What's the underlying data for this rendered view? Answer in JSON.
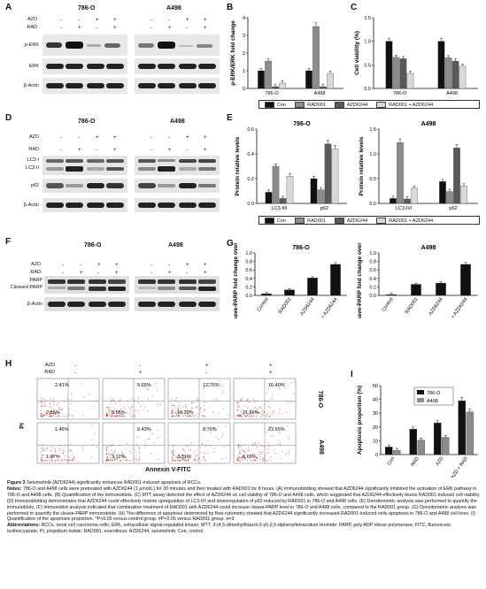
{
  "panels": {
    "A": "A",
    "B": "B",
    "C": "C",
    "D": "D",
    "E": "E",
    "F": "F",
    "G": "G",
    "H": "H",
    "I": "I"
  },
  "blots": {
    "A": {
      "cells": [
        "786-O",
        "A498"
      ],
      "treatments": [
        "AZD",
        "RAD"
      ],
      "signs": [
        "-",
        "-",
        "+",
        "+"
      ],
      "signs_rad": [
        "-",
        "+",
        "-",
        "+"
      ],
      "rows": [
        "p-ERK",
        "ERK",
        "β-Actin"
      ]
    },
    "D": {
      "cells": [
        "786-O",
        "A498"
      ],
      "treatments": [
        "AZD",
        "RAD"
      ],
      "rows": [
        "LC3-I",
        "LC3-II",
        "p62",
        "β-Actin"
      ]
    },
    "F": {
      "cells": [
        "786-O",
        "A498"
      ],
      "treatments": [
        "AZD",
        "RAD"
      ],
      "rows": [
        "PARP",
        "Cleaved PARP",
        "β-Actin"
      ]
    }
  },
  "flow": {
    "treatments": [
      "AZD",
      "RAD"
    ],
    "row_labels": [
      "786-O",
      "A498"
    ],
    "xlabel": "Annexin V-FITC",
    "ylabel": "PI",
    "gate_labels": "P6/P4/P5/P7",
    "upper_right": [
      "9.65%",
      "12.76%",
      "16.40%",
      "9.43%",
      "8.76%",
      "23.65%"
    ],
    "upper_left": [
      "2.41%",
      "1.46%"
    ],
    "lower_right": [
      "2.55%",
      "8.55%",
      "10.39%",
      "21.56%",
      "1.07%",
      "3.12%",
      "3.31%",
      "6.69%"
    ],
    "lr_extra": [
      "6.40%"
    ]
  },
  "chart_data": [
    {
      "type": "bar",
      "panel": "B",
      "ylabel": "p-ERK/ERK fold change",
      "categories": [
        "786-O",
        "A498"
      ],
      "ylim": [
        0,
        4
      ],
      "series": [
        {
          "name": "Con",
          "values": [
            1.0,
            1.0
          ]
        },
        {
          "name": "RAD001",
          "values": [
            1.55,
            3.5
          ]
        },
        {
          "name": "AZD6244",
          "values": [
            0.1,
            0.1
          ]
        },
        {
          "name": "RAD001 + AZD6244",
          "values": [
            0.3,
            0.85
          ]
        }
      ],
      "ticks": [
        "0",
        "1",
        "2",
        "3",
        "4"
      ]
    },
    {
      "type": "bar",
      "panel": "C",
      "ylabel": "Cell viability (%)",
      "categories": [
        "786-O",
        "A498"
      ],
      "ylim": [
        0,
        1.5
      ],
      "series": [
        {
          "name": "Con",
          "values": [
            1.0,
            1.0
          ]
        },
        {
          "name": "RAD001",
          "values": [
            0.66,
            0.65
          ]
        },
        {
          "name": "AZD6244",
          "values": [
            0.63,
            0.58
          ]
        },
        {
          "name": "RAD001 + AZD6244",
          "values": [
            0.32,
            0.47
          ]
        }
      ],
      "ticks": [
        "0.0",
        "0.5",
        "1.0",
        "1.5"
      ]
    },
    {
      "type": "bar",
      "panel": "E",
      "title": "786-O",
      "ylabel": "Protein relative levels",
      "categories": [
        "LC3-II/I",
        "p62"
      ],
      "ylim": [
        0,
        0.6
      ],
      "series": [
        {
          "name": "Con",
          "values": [
            0.09,
            0.2
          ]
        },
        {
          "name": "RAD001",
          "values": [
            0.3,
            0.11
          ]
        },
        {
          "name": "AZD6244",
          "values": [
            0.04,
            0.48
          ]
        },
        {
          "name": "RAD001 + AZD6244",
          "values": [
            0.22,
            0.44
          ]
        }
      ],
      "ticks": [
        "0.0",
        "0.2",
        "0.4",
        "0.6"
      ]
    },
    {
      "type": "bar",
      "panel": "E",
      "title": "A498",
      "ylabel": "Protein relative levels",
      "categories": [
        "LC3-II/I",
        "p62"
      ],
      "ylim": [
        0,
        1.5
      ],
      "series": [
        {
          "name": "Con",
          "values": [
            0.1,
            0.44
          ]
        },
        {
          "name": "RAD001",
          "values": [
            1.23,
            0.24
          ]
        },
        {
          "name": "AZD6244",
          "values": [
            0.09,
            1.12
          ]
        },
        {
          "name": "RAD001 + AZD6244",
          "values": [
            0.31,
            0.35
          ]
        }
      ],
      "ticks": [
        "0.0",
        "0.5",
        "1.0",
        "1.5"
      ]
    },
    {
      "type": "bar",
      "panel": "G",
      "title": "786-O",
      "ylabel": "Cleave-PARP fold change over β-actin",
      "categories": [
        "Control",
        "RAD001",
        "AZD6244",
        "RAD001 + AZD6244"
      ],
      "ylim": [
        0,
        1.0
      ],
      "values": [
        0.04,
        0.13,
        0.41,
        0.73
      ],
      "ticks": [
        "0.0",
        "0.2",
        "0.4",
        "0.6",
        "0.8",
        "1.0"
      ]
    },
    {
      "type": "bar",
      "panel": "G",
      "title": "A498",
      "ylabel": "Cleave-PARP fold change over β-actin",
      "categories": [
        "Control",
        "RAD001",
        "AZD6244",
        "RAD001 + AZD6244"
      ],
      "ylim": [
        0,
        1.0
      ],
      "values": [
        0.02,
        0.26,
        0.29,
        0.73
      ],
      "ticks": [
        "0.0",
        "0.2",
        "0.4",
        "0.6",
        "0.8",
        "1.0"
      ]
    },
    {
      "type": "bar",
      "panel": "I",
      "ylabel": "Apoptosis proportion (%)",
      "categories": [
        "Con",
        "RAD",
        "AZD",
        "AZD + RAD"
      ],
      "ylim": [
        0,
        50
      ],
      "series": [
        {
          "name": "786-O",
          "values": [
            5.5,
            18.5,
            23,
            39
          ]
        },
        {
          "name": "A498",
          "values": [
            3,
            10.5,
            12.5,
            31
          ]
        }
      ],
      "ticks": [
        "0",
        "10",
        "20",
        "30",
        "40",
        "50"
      ]
    }
  ],
  "legend_labels": [
    "Con",
    "RAD001",
    "AZD6244",
    "RAD001 + AZD6244"
  ],
  "colors": {
    "con": "#111111",
    "rad": "#8c8c8c",
    "azd": "#595959",
    "combo": "#d9d9d9",
    "i_786": "#111111",
    "i_a498": "#8c8c8c"
  },
  "caption": {
    "title_label": "Figure 3",
    "title": " Selumetinib (AZD6244) significantly enhances RAD001-induced apoptosis of RCCs.",
    "notes_label": "Notes:",
    "notes": " 786-O and A498 cells were pretreated with AZD6244 (1 μmol/L) for 30 minutes and then treated with RAD001 for 8 hours. (A) Immunoblotting showed that AZD6244 significantly inhibited the activation of ERK pathway in 786-O and A498 cells. (B) Quantification of the immunoblots. (C) MTT assay detected the effect of AZD6244 on cell viability of 786-O and A498 cells, which suggested that AZD6244 effectively blunts RAD001-induced cell viability. (D) Immunoblotting demonstrates that AZD6244 could effectively restore upregulation of LC3-II/I and downregulation of p62 induced by RAD001 in 786-O and A498 cells. (E) Densitometric analysis was performed to quantify the immunoblots. (F) Immunoblot analysis indicated that combination treatment of RAD001 with AZD6244 could increase cleave-PARP level in 786-O and A498 cells, compared to the RAD001 group. (G) Densitometric analysis was performed to quantify the cleave-PARP immunoblots. (H) The difference of apoptosis determined by flow cytometry showed that AZD6244 significantly increased RAD001-induced cells apoptosis in 786-O and A498 cell lines. (I) Quantification of the apoptosis proportion. *P<0.05 versus control group. #P<0.05 versus RAD001 group. n=3.",
    "abbr_label": "Abbreviations:",
    "abbr": " RCCs, renal cell carcinoma cells; ERK, extracellular signal-regulated kinase; MTT, 3-(4,5-dimethylthiazol-2-yl)-2,5-diphenyltetrazolium bromide; PARP, poly ADP ribose polymerase; FITC, fluorescein isothiocyanate; PI, propidium iodide; RAD001, everolimus; AZD6244, selumetinib; Con, control."
  }
}
